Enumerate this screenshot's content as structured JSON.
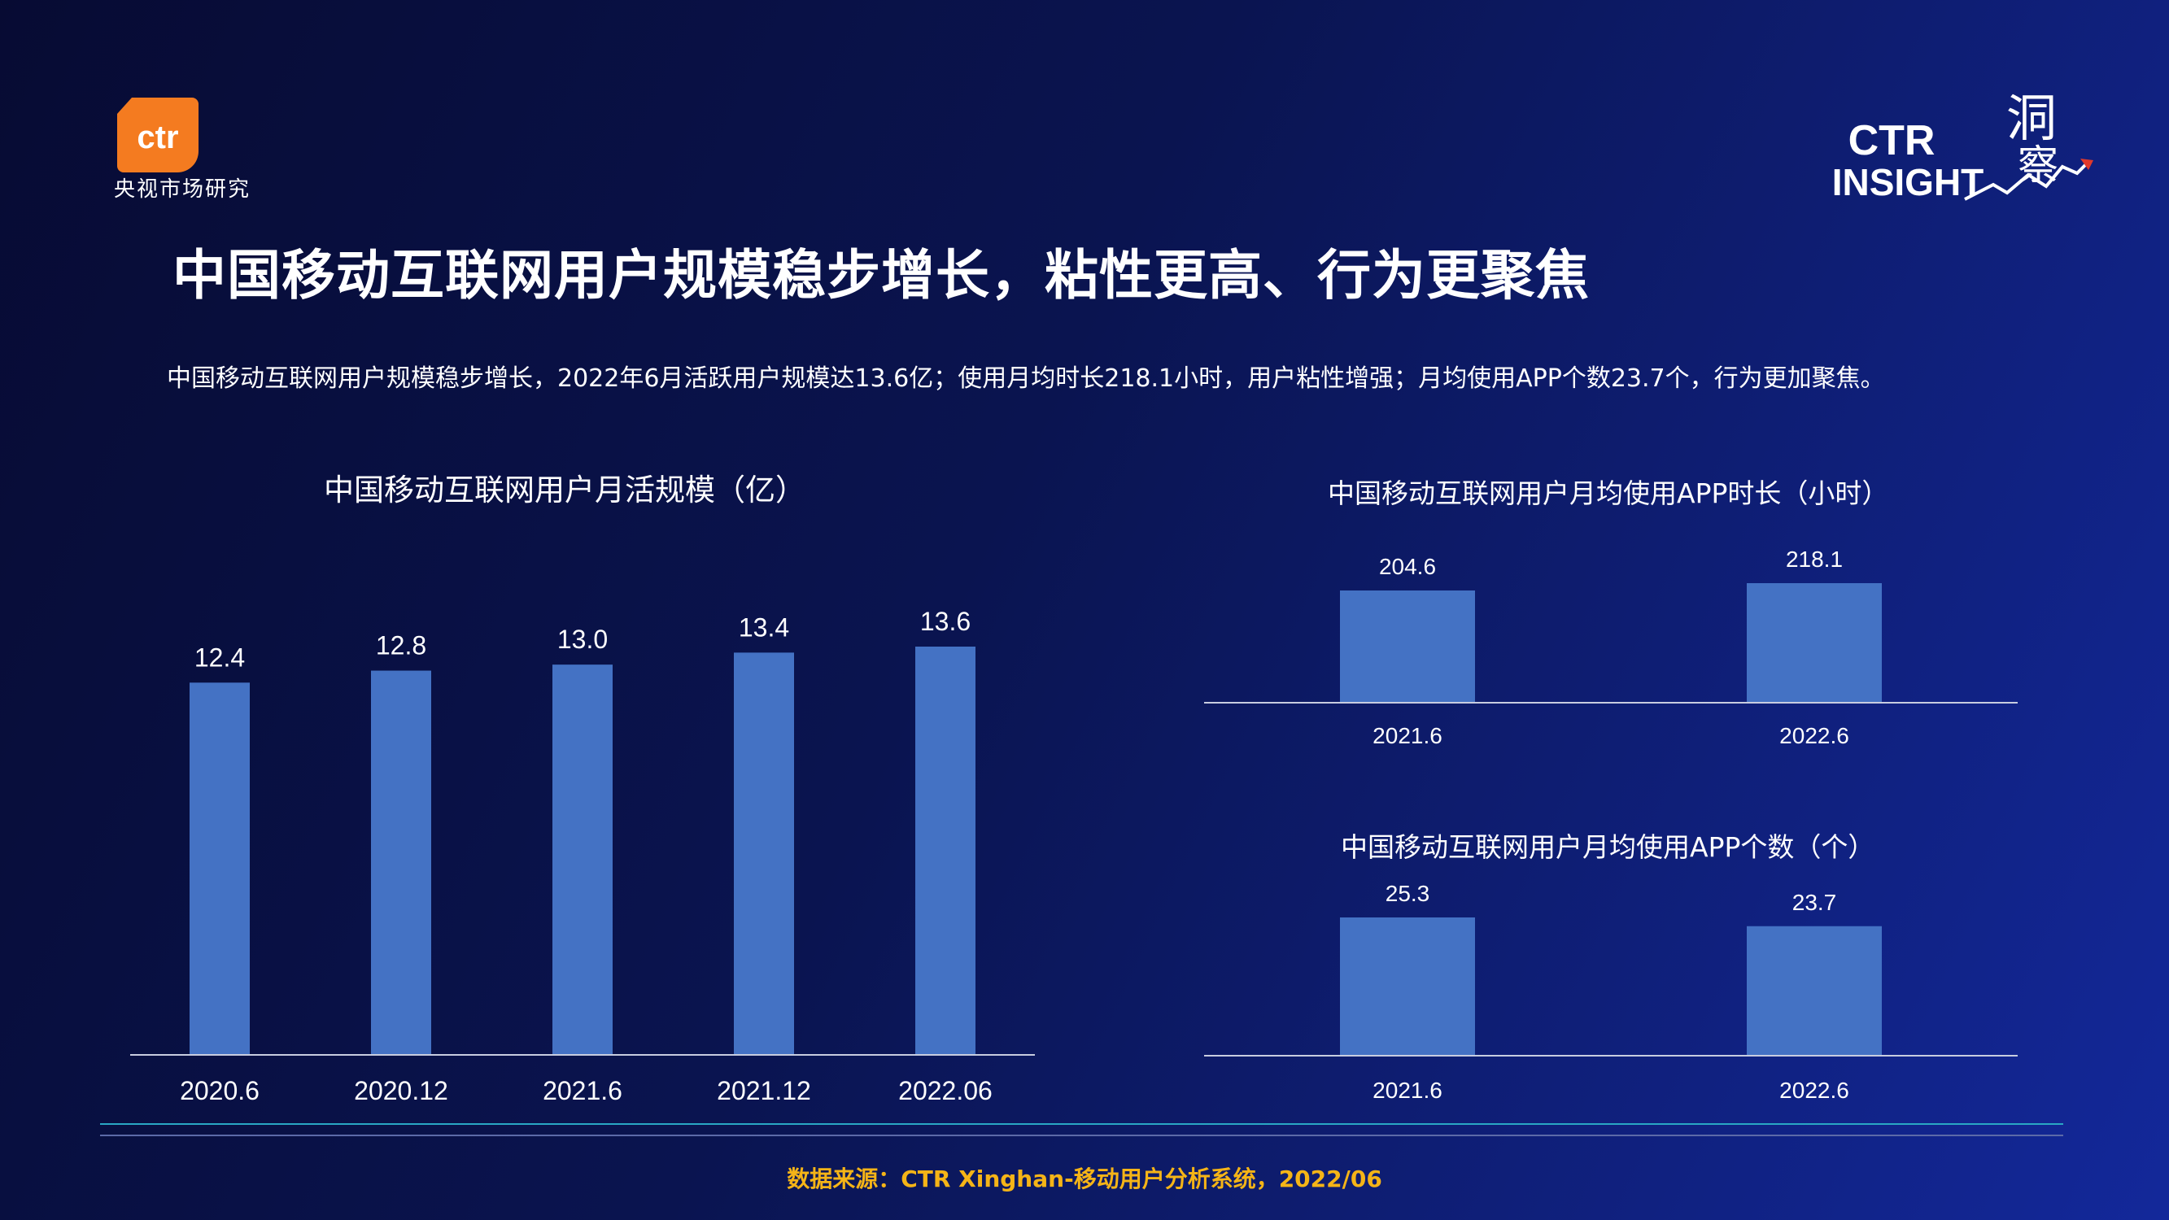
{
  "header": {
    "brand_left_mark": "ctr",
    "brand_left_text": "央视市场研究",
    "brand_right_ctr": "CTR",
    "brand_right_insight": "INSIGHT",
    "brand_right_cn_1": "洞",
    "brand_right_cn_2": "察"
  },
  "title": "中国移动互联网用户规模稳步增长，粘性更高、行为更聚焦",
  "subtitle": "中国移动互联网用户规模稳步增长，2022年6月活跃用户规模达13.6亿；使用月均时长218.1小时，用户粘性增强；月均使用APP个数23.7个，行为更加聚焦。",
  "colors": {
    "bar": "#4472c4",
    "accent_source": "#f5b417"
  },
  "chart_data": [
    {
      "type": "bar",
      "title": "中国移动互联网用户月活规模（亿）",
      "categories": [
        "2020.6",
        "2020.12",
        "2021.6",
        "2021.12",
        "2022.06"
      ],
      "values": [
        12.4,
        12.8,
        13.0,
        13.4,
        13.6
      ],
      "value_labels": [
        "12.4",
        "12.8",
        "13.0",
        "13.4",
        "13.6"
      ]
    },
    {
      "type": "bar",
      "title": "中国移动互联网用户月均使用APP时长（小时）",
      "categories": [
        "2021.6",
        "2022.6"
      ],
      "values": [
        204.6,
        218.1
      ],
      "value_labels": [
        "204.6",
        "218.1"
      ]
    },
    {
      "type": "bar",
      "title": "中国移动互联网用户月均使用APP个数（个）",
      "categories": [
        "2021.6",
        "2022.6"
      ],
      "values": [
        25.3,
        23.7
      ],
      "value_labels": [
        "25.3",
        "23.7"
      ]
    }
  ],
  "footer": {
    "source": "数据来源：CTR Xinghan-移动用户分析系统，2022/06"
  }
}
